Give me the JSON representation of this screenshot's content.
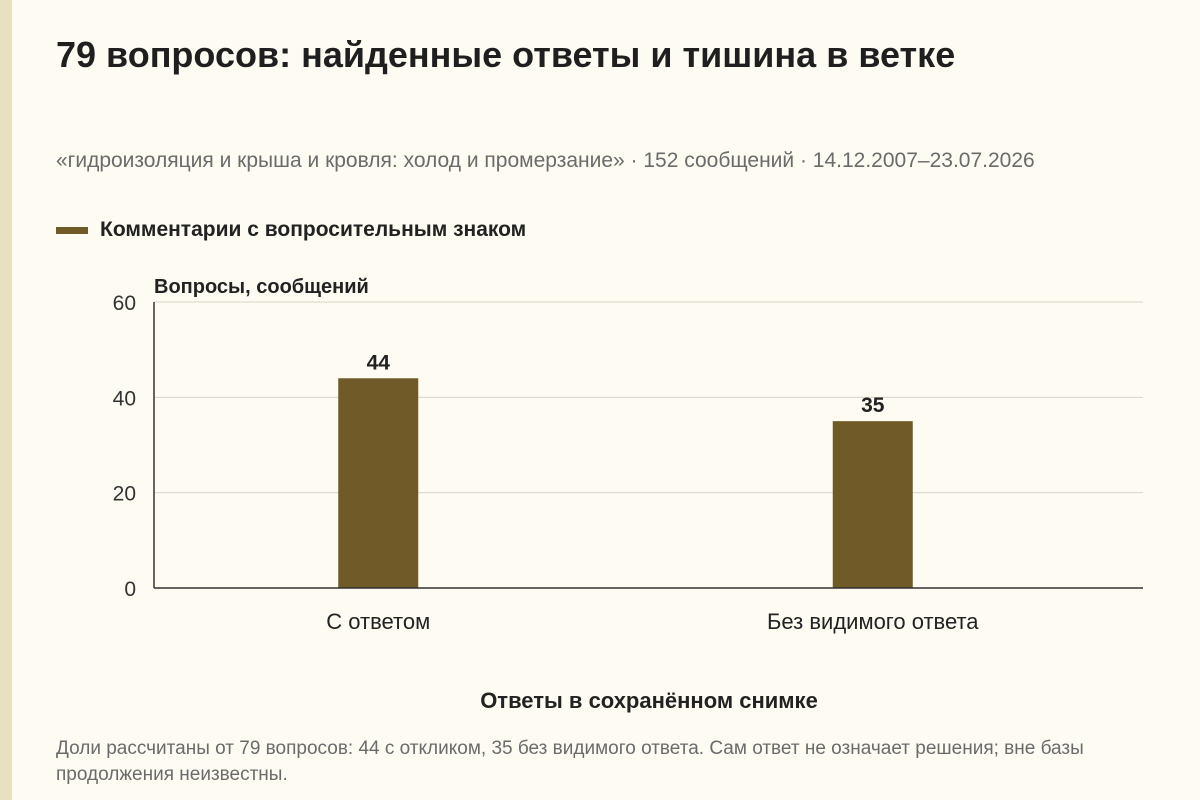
{
  "title": "79 вопросов: найденные ответы и тишина в ветке",
  "subtitle": "«гидроизоляция и крыша и кровля: холод и промерзание» · 152 сообщений · 14.12.2007–23.07.2026",
  "note": "Доли рассчитаны от 79 вопросов: 44 с откликом, 35 без видимого ответа. Сам ответ не означает решения; вне базы продолжения неизвестны.",
  "colors": {
    "background": "#fdfbf2",
    "bar": "#6f5a28",
    "grid": "#d9d4c4",
    "axis": "#333333",
    "strip": "#e9e0c1"
  },
  "chart_data": {
    "type": "bar",
    "categories": [
      "С ответом",
      "Без видимого ответа"
    ],
    "series": [
      {
        "name": "Комментарии с вопросительным знаком",
        "values": [
          44,
          35
        ]
      }
    ],
    "data_labels": [
      "44",
      "35"
    ],
    "ylabel": "Вопросы, сообщений",
    "xlabel": "Ответы в сохранённом снимке",
    "ylim": [
      0,
      60
    ],
    "yticks": [
      0,
      20,
      40,
      60
    ],
    "grid": true,
    "legend_position": "top-left"
  }
}
